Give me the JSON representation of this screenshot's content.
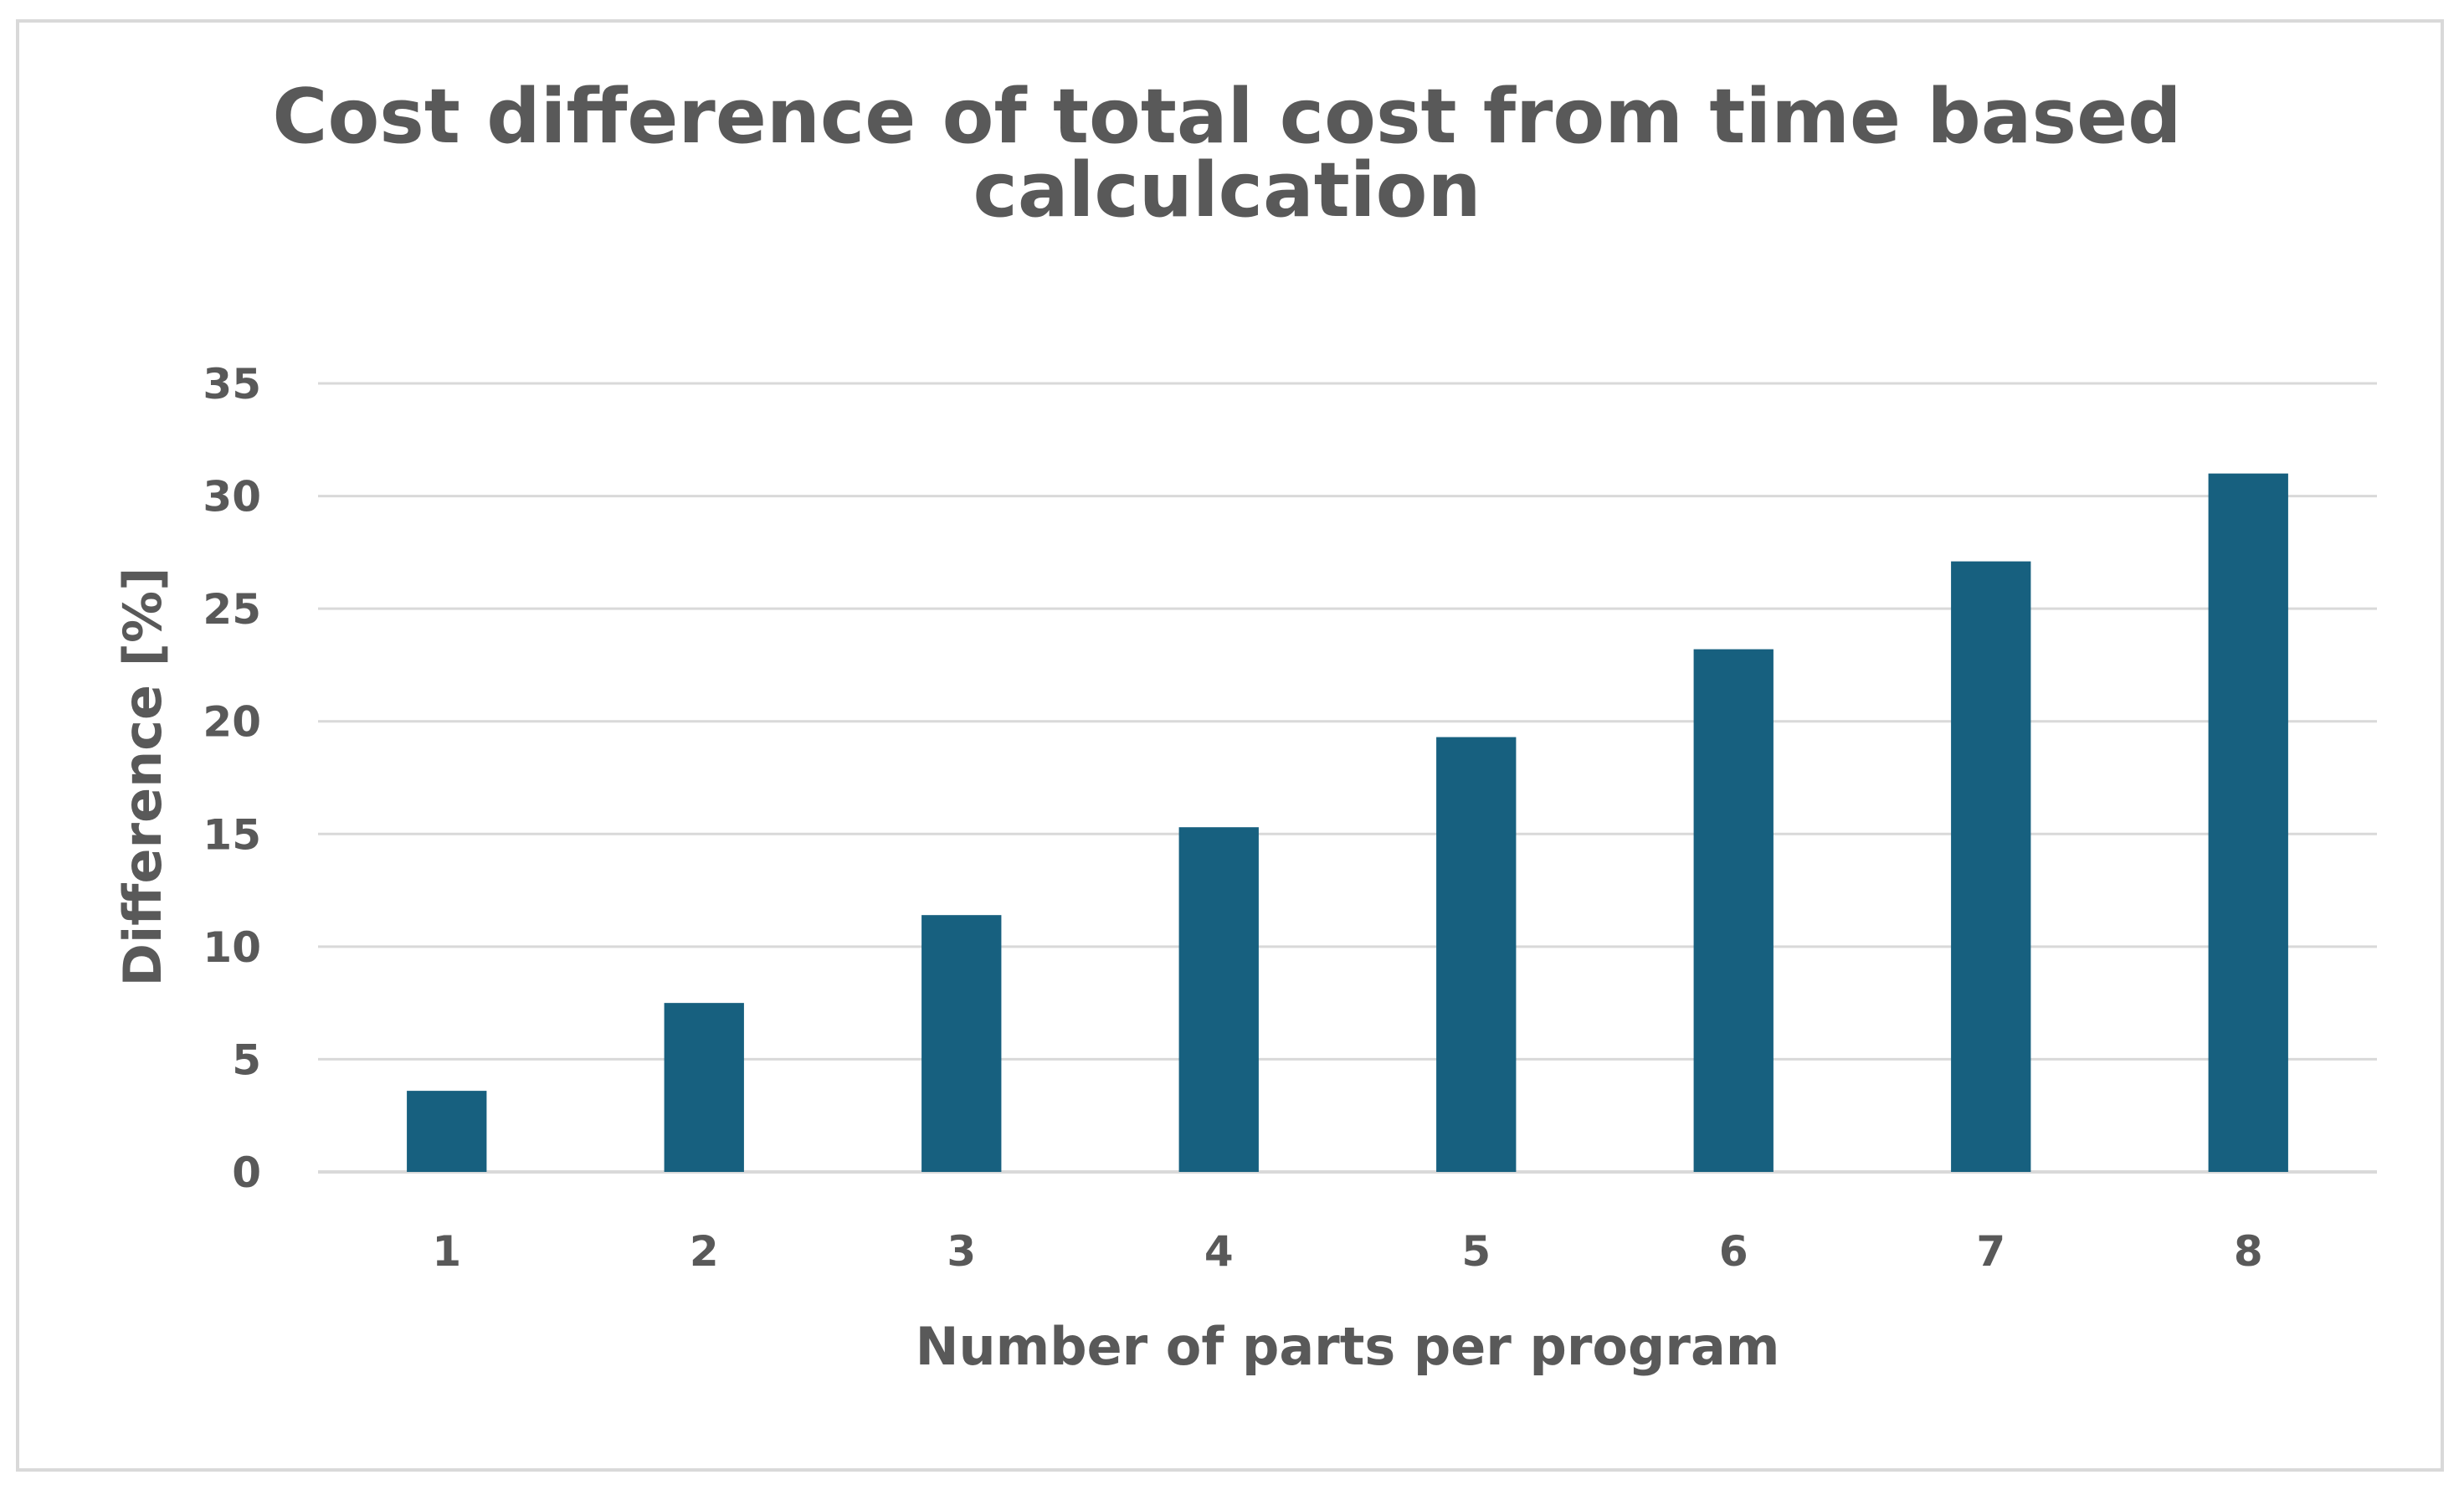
{
  "chart_data": {
    "type": "bar",
    "title_lines": [
      "Cost difference of total cost from time based",
      "calculcation"
    ],
    "title": "Cost difference of total cost from time based calculcation",
    "categories": [
      "1",
      "2",
      "3",
      "4",
      "5",
      "6",
      "7",
      "8"
    ],
    "values": [
      3.6,
      7.5,
      11.4,
      15.3,
      19.3,
      23.2,
      27.1,
      31.0
    ],
    "xlabel": "Number of parts per program",
    "ylabel": "Difference [%]",
    "ylim": [
      0,
      35
    ],
    "yticks": [
      0,
      5,
      10,
      15,
      20,
      25,
      30,
      35
    ],
    "grid": true,
    "legend": "none",
    "bar_color": "#17607f",
    "grid_color": "#d9d9d9",
    "text_color": "#595959"
  }
}
